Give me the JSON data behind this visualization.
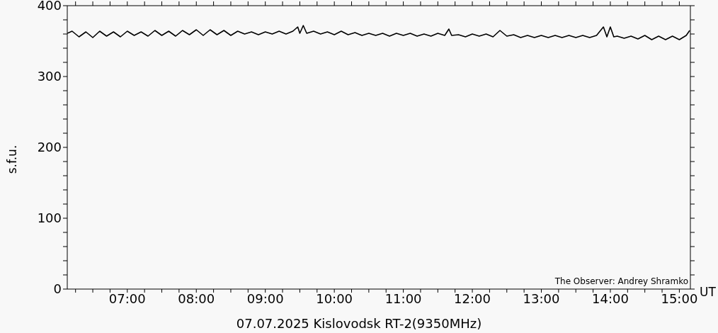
{
  "chart_data": {
    "type": "line",
    "title": "07.07.2025 Kislovodsk RT-2(9350MHz)",
    "xlabel": "UT",
    "ylabel": "s.f.u.",
    "annotations": [
      "The Observer: Andrey Shramko"
    ],
    "x": [
      6.13,
      6.2,
      6.3,
      6.4,
      6.5,
      6.6,
      6.7,
      6.8,
      6.9,
      7.0,
      7.1,
      7.2,
      7.3,
      7.4,
      7.5,
      7.6,
      7.7,
      7.8,
      7.9,
      8.0,
      8.1,
      8.2,
      8.3,
      8.4,
      8.5,
      8.6,
      8.7,
      8.8,
      8.9,
      9.0,
      9.1,
      9.2,
      9.3,
      9.4,
      9.47,
      9.5,
      9.55,
      9.6,
      9.7,
      9.8,
      9.9,
      10.0,
      10.1,
      10.2,
      10.3,
      10.4,
      10.5,
      10.6,
      10.7,
      10.8,
      10.9,
      11.0,
      11.1,
      11.2,
      11.3,
      11.4,
      11.5,
      11.6,
      11.66,
      11.7,
      11.8,
      11.9,
      12.0,
      12.1,
      12.2,
      12.3,
      12.4,
      12.5,
      12.6,
      12.7,
      12.8,
      12.9,
      13.0,
      13.1,
      13.2,
      13.3,
      13.4,
      13.5,
      13.6,
      13.7,
      13.8,
      13.9,
      13.95,
      14.0,
      14.05,
      14.1,
      14.2,
      14.3,
      14.4,
      14.5,
      14.6,
      14.7,
      14.8,
      14.9,
      15.0,
      15.1,
      15.15
    ],
    "series": [
      {
        "color": "#000000",
        "values": [
          361,
          364,
          356,
          363,
          355,
          364,
          357,
          363,
          356,
          364,
          358,
          363,
          357,
          365,
          358,
          364,
          357,
          365,
          359,
          366,
          358,
          366,
          359,
          365,
          358,
          364,
          360,
          363,
          359,
          363,
          360,
          364,
          360,
          364,
          370,
          361,
          372,
          361,
          364,
          360,
          363,
          359,
          364,
          359,
          362,
          358,
          361,
          358,
          361,
          357,
          361,
          358,
          361,
          357,
          360,
          357,
          361,
          358,
          367,
          358,
          359,
          356,
          360,
          357,
          360,
          356,
          365,
          357,
          359,
          355,
          358,
          355,
          358,
          355,
          358,
          355,
          358,
          355,
          358,
          355,
          358,
          370,
          356,
          370,
          356,
          357,
          354,
          357,
          353,
          358,
          352,
          357,
          352,
          357,
          352,
          358,
          365
        ]
      }
    ],
    "xlim": [
      6.13,
      15.16
    ],
    "xticks": [
      {
        "value": 6.25,
        "label": null
      },
      {
        "value": 6.5,
        "label": null
      },
      {
        "value": 6.75,
        "label": null
      },
      {
        "value": 7,
        "label": "07:00"
      },
      {
        "value": 7.25,
        "label": null
      },
      {
        "value": 7.5,
        "label": null
      },
      {
        "value": 7.75,
        "label": null
      },
      {
        "value": 8,
        "label": "08:00"
      },
      {
        "value": 8.25,
        "label": null
      },
      {
        "value": 8.5,
        "label": null
      },
      {
        "value": 8.75,
        "label": null
      },
      {
        "value": 9,
        "label": "09:00"
      },
      {
        "value": 9.25,
        "label": null
      },
      {
        "value": 9.5,
        "label": null
      },
      {
        "value": 9.75,
        "label": null
      },
      {
        "value": 10,
        "label": "10:00"
      },
      {
        "value": 10.25,
        "label": null
      },
      {
        "value": 10.5,
        "label": null
      },
      {
        "value": 10.75,
        "label": null
      },
      {
        "value": 11,
        "label": "11:00"
      },
      {
        "value": 11.25,
        "label": null
      },
      {
        "value": 11.5,
        "label": null
      },
      {
        "value": 11.75,
        "label": null
      },
      {
        "value": 12,
        "label": "12:00"
      },
      {
        "value": 12.25,
        "label": null
      },
      {
        "value": 12.5,
        "label": null
      },
      {
        "value": 12.75,
        "label": null
      },
      {
        "value": 13,
        "label": "13:00"
      },
      {
        "value": 13.25,
        "label": null
      },
      {
        "value": 13.5,
        "label": null
      },
      {
        "value": 13.75,
        "label": null
      },
      {
        "value": 14,
        "label": "14:00"
      },
      {
        "value": 14.25,
        "label": null
      },
      {
        "value": 14.5,
        "label": null
      },
      {
        "value": 14.75,
        "label": null
      },
      {
        "value": 15,
        "label": "15:00"
      }
    ],
    "ylim": [
      0,
      400
    ],
    "yticks": [
      0,
      {
        "value": 20,
        "label": null
      },
      {
        "value": 40,
        "label": null
      },
      {
        "value": 60,
        "label": null
      },
      {
        "value": 80,
        "label": null
      },
      100,
      {
        "value": 120,
        "label": null
      },
      {
        "value": 140,
        "label": null
      },
      {
        "value": 160,
        "label": null
      },
      {
        "value": 180,
        "label": null
      },
      200,
      {
        "value": 220,
        "label": null
      },
      {
        "value": 240,
        "label": null
      },
      {
        "value": 260,
        "label": null
      },
      {
        "value": 280,
        "label": null
      },
      300,
      {
        "value": 320,
        "label": null
      },
      {
        "value": 340,
        "label": null
      },
      {
        "value": 360,
        "label": null
      },
      {
        "value": 380,
        "label": null
      },
      400
    ],
    "marker": "none",
    "line_style": "solid"
  }
}
